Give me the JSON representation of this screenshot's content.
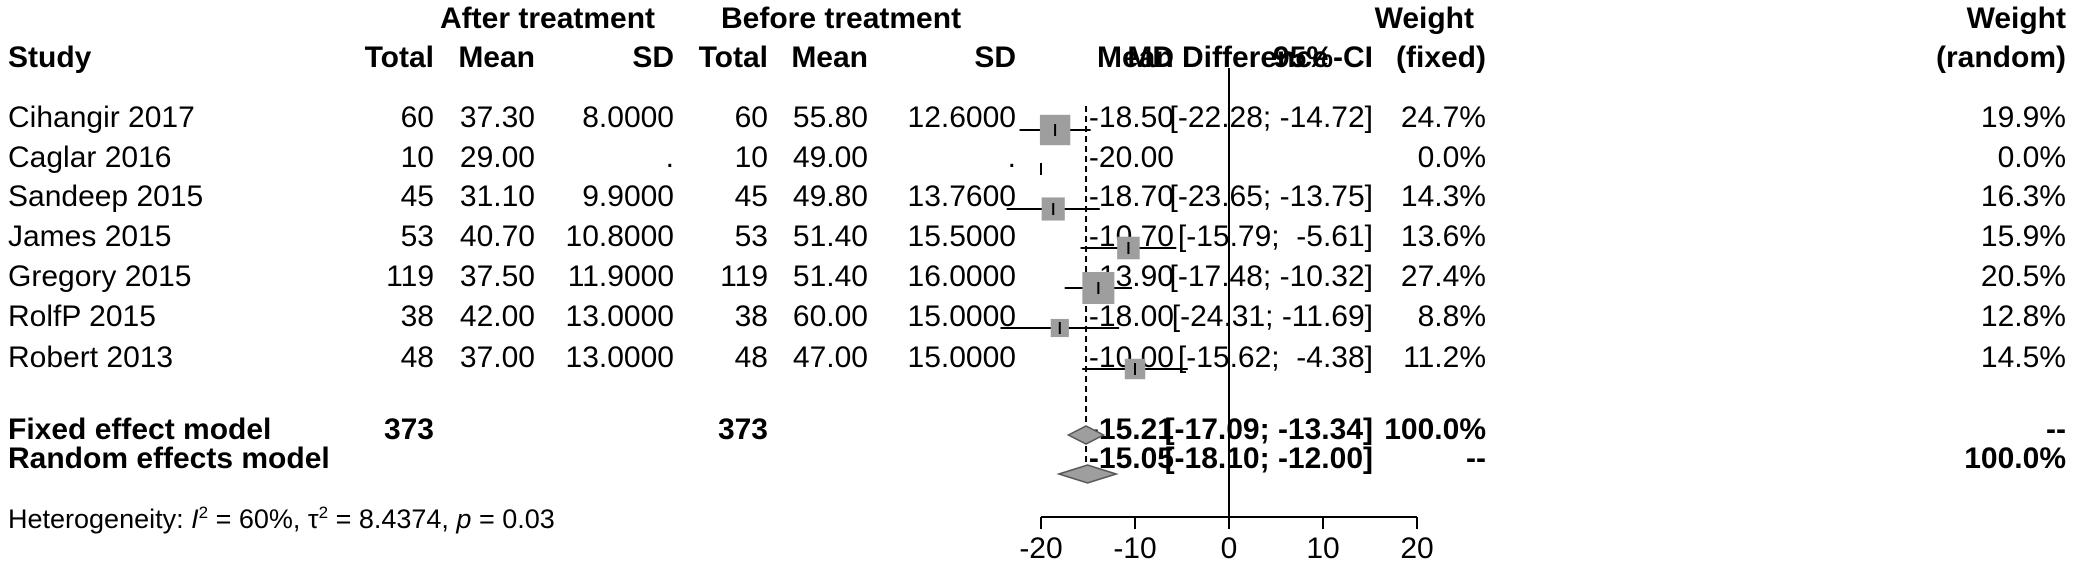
{
  "headers": {
    "group1": "After treatment",
    "group2": "Before treatment",
    "study": "Study",
    "total1": "Total",
    "mean1": "Mean",
    "sd1": "SD",
    "total2": "Total",
    "mean2": "Mean",
    "sd2": "SD",
    "plot": "Mean Difference",
    "md": "MD",
    "ci": "95%-CI",
    "wf_line1": "Weight",
    "wf_line2": "(fixed)",
    "wr_line1": "Weight",
    "wr_line2": "(random)"
  },
  "studies": [
    {
      "study": "Cihangir 2017",
      "total1": "60",
      "mean1": "37.30",
      "sd1": "8.0000",
      "total2": "60",
      "mean2": "55.80",
      "sd2": "12.6000",
      "md": "-18.50",
      "ci": "[-22.28; -14.72]",
      "wf": "24.7%",
      "wr": "19.9%"
    },
    {
      "study": "Caglar 2016",
      "total1": "10",
      "mean1": "29.00",
      "sd1": ".",
      "total2": "10",
      "mean2": "49.00",
      "sd2": ".",
      "md": "-20.00",
      "ci": "",
      "wf": "0.0%",
      "wr": "0.0%"
    },
    {
      "study": "Sandeep 2015",
      "total1": "45",
      "mean1": "31.10",
      "sd1": "9.9000",
      "total2": "45",
      "mean2": "49.80",
      "sd2": "13.7600",
      "md": "-18.70",
      "ci": "[-23.65; -13.75]",
      "wf": "14.3%",
      "wr": "16.3%"
    },
    {
      "study": "James 2015",
      "total1": "53",
      "mean1": "40.70",
      "sd1": "10.8000",
      "total2": "53",
      "mean2": "51.40",
      "sd2": "15.5000",
      "md": "-10.70",
      "ci": "[-15.79;  -5.61]",
      "wf": "13.6%",
      "wr": "15.9%"
    },
    {
      "study": "Gregory 2015",
      "total1": "119",
      "mean1": "37.50",
      "sd1": "11.9000",
      "total2": "119",
      "mean2": "51.40",
      "sd2": "16.0000",
      "md": "-13.90",
      "ci": "[-17.48; -10.32]",
      "wf": "27.4%",
      "wr": "20.5%"
    },
    {
      "study": "RolfP 2015",
      "total1": "38",
      "mean1": "42.00",
      "sd1": "13.0000",
      "total2": "38",
      "mean2": "60.00",
      "sd2": "15.0000",
      "md": "-18.00",
      "ci": "[-24.31; -11.69]",
      "wf": "8.8%",
      "wr": "12.8%"
    },
    {
      "study": "Robert 2013",
      "total1": "48",
      "mean1": "37.00",
      "sd1": "13.0000",
      "total2": "48",
      "mean2": "47.00",
      "sd2": "15.0000",
      "md": "-10.00",
      "ci": "[-15.62;  -4.38]",
      "wf": "11.2%",
      "wr": "14.5%"
    }
  ],
  "summary": [
    {
      "label": "Fixed effect model",
      "total1": "373",
      "total2": "373",
      "md": "-15.21",
      "ci": "[-17.09; -13.34]",
      "wf": "100.0%",
      "wr": "--"
    },
    {
      "label": "Random effects model",
      "total1": "",
      "total2": "",
      "md": "-15.05",
      "ci": "[-18.10; -12.00]",
      "wf": "--",
      "wr": "100.0%"
    }
  ],
  "heterogeneity": {
    "prefix": "Heterogeneity: ",
    "i2_symbol": "I",
    "i2_value": " = 60%, ",
    "tau_symbol": "τ",
    "tau_value": " = 8.4374, ",
    "p_symbol": "p",
    "p_value": " = 0.03"
  },
  "chart_data": {
    "type": "forest",
    "xlabel": "Mean Difference",
    "xlim": [
      -20,
      20
    ],
    "ticks": [
      -20,
      -10,
      0,
      10,
      20
    ],
    "reference_line": 0,
    "studies": [
      {
        "name": "Cihangir 2017",
        "md": -18.5,
        "lo": -22.28,
        "hi": -14.72,
        "weight_fixed": 24.7
      },
      {
        "name": "Caglar 2016",
        "md": -20.0,
        "lo": null,
        "hi": null,
        "weight_fixed": 0.0
      },
      {
        "name": "Sandeep 2015",
        "md": -18.7,
        "lo": -23.65,
        "hi": -13.75,
        "weight_fixed": 14.3
      },
      {
        "name": "James 2015",
        "md": -10.7,
        "lo": -15.79,
        "hi": -5.61,
        "weight_fixed": 13.6
      },
      {
        "name": "Gregory 2015",
        "md": -13.9,
        "lo": -17.48,
        "hi": -10.32,
        "weight_fixed": 27.4
      },
      {
        "name": "RolfP 2015",
        "md": -18.0,
        "lo": -24.31,
        "hi": -11.69,
        "weight_fixed": 8.8
      },
      {
        "name": "Robert 2013",
        "md": -10.0,
        "lo": -15.62,
        "hi": -4.38,
        "weight_fixed": 11.2
      }
    ],
    "fixed": {
      "md": -15.21,
      "lo": -17.09,
      "hi": -13.34
    },
    "random": {
      "md": -15.05,
      "lo": -18.1,
      "hi": -12.0
    }
  }
}
